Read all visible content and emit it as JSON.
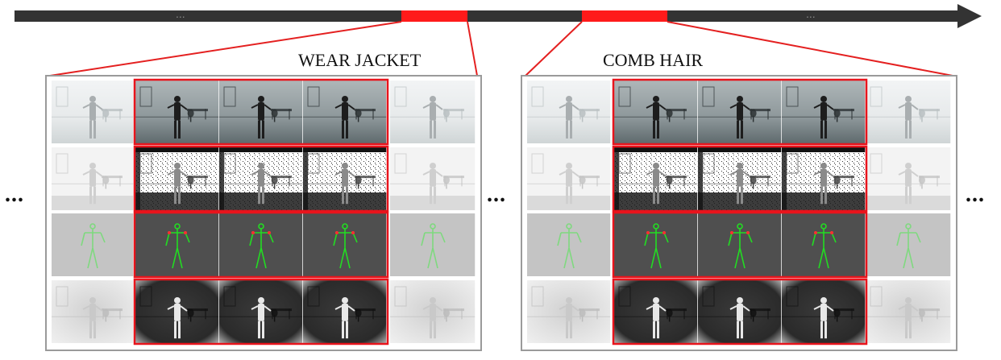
{
  "timeline": {
    "left_ellipsis": "...",
    "right_ellipsis": "...",
    "bar_color": "#333333",
    "highlight_color": "#ff1a1a"
  },
  "side_ellipses": [
    "...",
    "...",
    "..."
  ],
  "panels": [
    {
      "title": "WEAR JACKET",
      "modalities": [
        "rgb",
        "depth",
        "skeleton",
        "infrared"
      ]
    },
    {
      "title": "COMB HAIR",
      "modalities": [
        "rgb",
        "depth",
        "skeleton",
        "infrared"
      ]
    }
  ]
}
